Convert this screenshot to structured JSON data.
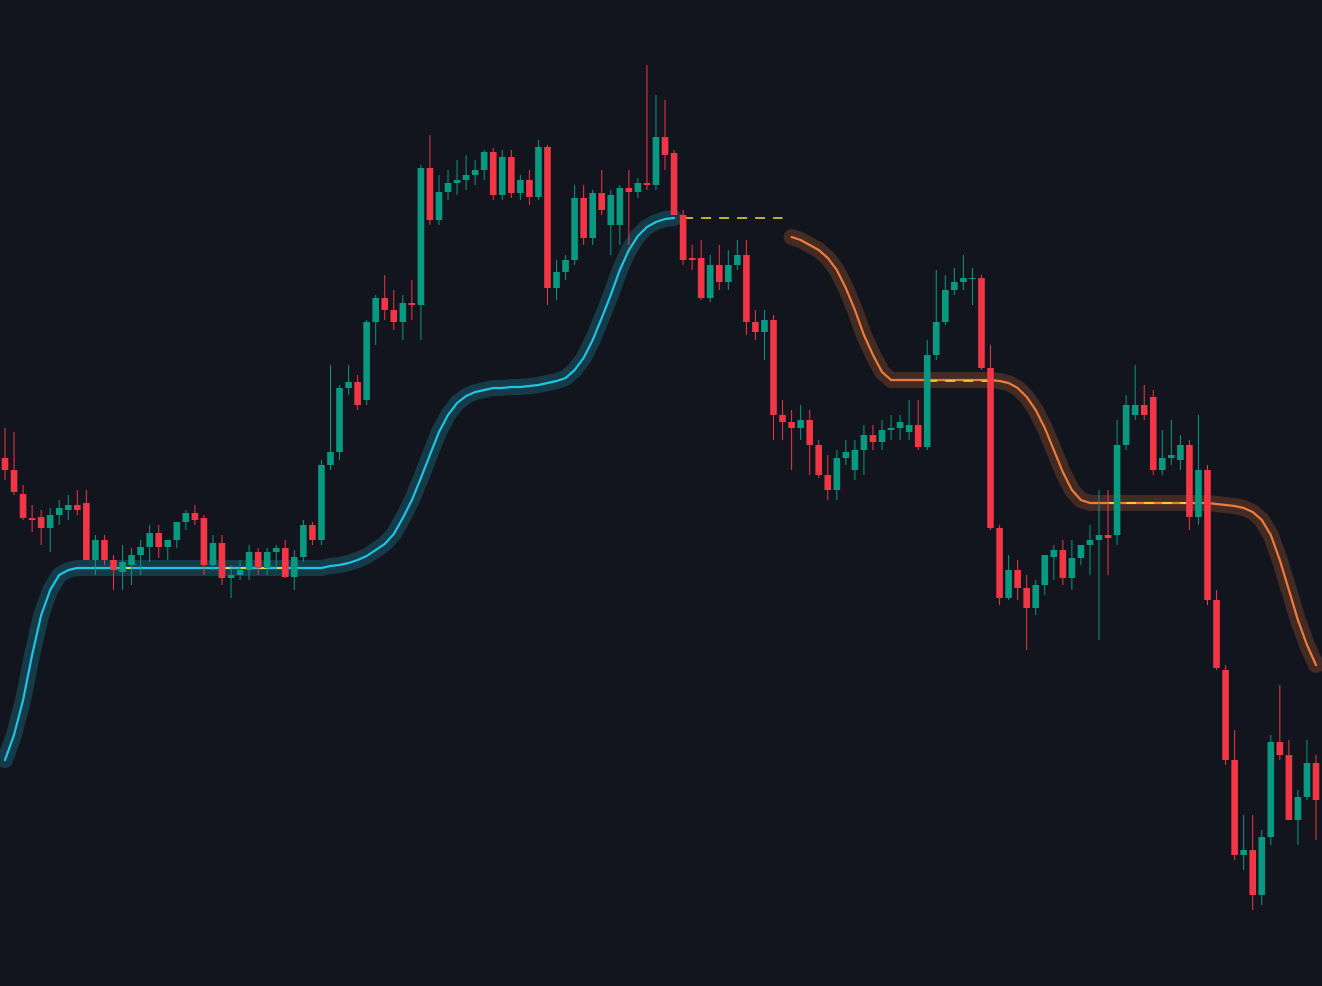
{
  "chart_data": {
    "type": "candlestick",
    "ylim": [
      14,
      1000
    ],
    "up_color": "#089981",
    "down_color": "#f23645",
    "open": [
      542,
      530,
      506,
      482,
      483,
      472,
      485,
      490,
      495,
      497,
      440,
      460,
      440,
      428,
      435,
      445,
      453,
      467,
      453,
      460,
      478,
      487,
      482,
      435,
      457,
      422,
      425,
      430,
      448,
      432,
      448,
      452,
      423,
      443,
      475,
      460,
      535,
      548,
      612,
      618,
      600,
      678,
      702,
      690,
      678,
      697,
      695,
      832,
      780,
      808,
      817,
      820,
      825,
      830,
      848,
      805,
      843,
      807,
      820,
      803,
      853,
      712,
      728,
      740,
      802,
      762,
      807,
      775,
      775,
      812,
      808,
      817,
      815,
      863,
      847,
      785,
      742,
      742,
      702,
      735,
      718,
      735,
      745,
      678,
      668,
      680,
      585,
      578,
      572,
      580,
      555,
      525,
      510,
      542,
      530,
      550,
      565,
      558,
      570,
      572,
      568,
      575,
      553,
      645,
      678,
      710,
      718,
      722,
      722,
      632,
      472,
      402,
      430,
      412,
      392,
      415,
      443,
      450,
      422,
      442,
      455,
      460,
      465,
      465,
      555,
      585,
      595,
      603,
      530,
      542,
      540,
      555,
      483,
      530,
      400,
      330,
      240,
      145,
      150,
      105,
      163,
      258,
      245,
      180,
      203,
      237
    ],
    "high": [
      572,
      568,
      515,
      495,
      490,
      492,
      500,
      505,
      510,
      510,
      465,
      465,
      445,
      455,
      452,
      460,
      475,
      475,
      460,
      475,
      490,
      495,
      485,
      465,
      465,
      435,
      440,
      455,
      452,
      452,
      455,
      460,
      450,
      480,
      478,
      540,
      635,
      615,
      635,
      625,
      680,
      705,
      725,
      710,
      705,
      720,
      835,
      865,
      825,
      830,
      840,
      845,
      840,
      850,
      852,
      850,
      850,
      825,
      830,
      860,
      855,
      740,
      745,
      815,
      815,
      810,
      830,
      810,
      815,
      830,
      822,
      935,
      905,
      900,
      850,
      790,
      755,
      760,
      745,
      755,
      750,
      760,
      760,
      690,
      690,
      685,
      600,
      590,
      595,
      590,
      560,
      545,
      550,
      560,
      560,
      575,
      575,
      580,
      585,
      585,
      600,
      600,
      660,
      730,
      725,
      732,
      745,
      732,
      725,
      655,
      475,
      445,
      440,
      425,
      420,
      445,
      455,
      460,
      460,
      455,
      475,
      510,
      510,
      580,
      605,
      635,
      615,
      610,
      570,
      580,
      565,
      560,
      585,
      535,
      410,
      335,
      270,
      185,
      185,
      170,
      265,
      315,
      260,
      210,
      260,
      245
    ],
    "low": [
      520,
      505,
      480,
      468,
      455,
      448,
      475,
      480,
      485,
      440,
      425,
      435,
      410,
      410,
      415,
      425,
      438,
      442,
      440,
      452,
      470,
      475,
      425,
      430,
      415,
      402,
      420,
      420,
      425,
      425,
      430,
      422,
      410,
      438,
      455,
      455,
      530,
      540,
      605,
      590,
      595,
      655,
      680,
      670,
      660,
      680,
      660,
      775,
      775,
      800,
      805,
      810,
      815,
      820,
      800,
      800,
      802,
      800,
      795,
      800,
      695,
      700,
      720,
      735,
      755,
      755,
      785,
      745,
      755,
      755,
      802,
      810,
      810,
      830,
      785,
      735,
      730,
      700,
      698,
      710,
      710,
      730,
      665,
      660,
      640,
      560,
      560,
      530,
      560,
      525,
      522,
      500,
      500,
      535,
      520,
      525,
      550,
      550,
      560,
      560,
      560,
      550,
      550,
      640,
      675,
      705,
      710,
      695,
      630,
      470,
      395,
      400,
      400,
      350,
      385,
      405,
      420,
      415,
      410,
      435,
      425,
      360,
      425,
      455,
      550,
      580,
      580,
      525,
      525,
      535,
      530,
      470,
      475,
      395,
      330,
      235,
      140,
      130,
      90,
      95,
      155,
      240,
      180,
      155,
      200,
      160
    ],
    "close": [
      530,
      508,
      482,
      480,
      472,
      485,
      492,
      495,
      490,
      440,
      460,
      440,
      430,
      438,
      445,
      453,
      467,
      453,
      460,
      478,
      487,
      480,
      435,
      457,
      422,
      425,
      430,
      448,
      432,
      448,
      452,
      423,
      443,
      475,
      460,
      535,
      548,
      612,
      618,
      595,
      678,
      702,
      690,
      678,
      697,
      695,
      832,
      780,
      808,
      817,
      820,
      825,
      830,
      848,
      805,
      843,
      807,
      820,
      803,
      853,
      712,
      728,
      740,
      802,
      762,
      807,
      790,
      805,
      812,
      808,
      817,
      815,
      863,
      845,
      785,
      740,
      740,
      702,
      735,
      718,
      735,
      745,
      678,
      668,
      680,
      585,
      578,
      572,
      580,
      555,
      525,
      510,
      542,
      548,
      550,
      565,
      558,
      570,
      572,
      578,
      575,
      553,
      645,
      678,
      710,
      718,
      722,
      722,
      632,
      472,
      402,
      430,
      412,
      392,
      415,
      445,
      450,
      422,
      442,
      455,
      460,
      465,
      462,
      555,
      595,
      595,
      585,
      530,
      542,
      545,
      555,
      483,
      530,
      400,
      332,
      240,
      145,
      150,
      105,
      163,
      258,
      245,
      180,
      203,
      237,
      200
    ],
    "series": [
      {
        "color": "#1fc3e3",
        "values": [
          240,
          265,
          300,
          345,
          385,
          410,
          425,
          430,
          432,
          432,
          432,
          432,
          432,
          432,
          432,
          432,
          432,
          432,
          432,
          432,
          432,
          432,
          432,
          432,
          432,
          432,
          432,
          432,
          432,
          432,
          432,
          432,
          432,
          432,
          432,
          432,
          434,
          435,
          437,
          440,
          444,
          450,
          456,
          466,
          482,
          500,
          522,
          545,
          568,
          585,
          597,
          604,
          608,
          610,
          612,
          612,
          613,
          613,
          614,
          615,
          617,
          619,
          622,
          630,
          642,
          660,
          682,
          705,
          730,
          750,
          764,
          773,
          778,
          781,
          782,
          null,
          null,
          null,
          null,
          null,
          null,
          null,
          null,
          null,
          null,
          null,
          null,
          null,
          null,
          null,
          null,
          null,
          null,
          null,
          null,
          null,
          null,
          null,
          null,
          null,
          null,
          null,
          null,
          null,
          null,
          null,
          null,
          null,
          null,
          null,
          null,
          null,
          null,
          null,
          null,
          null,
          null,
          null,
          null,
          null,
          null,
          null,
          null,
          null,
          null,
          null,
          null,
          null,
          null,
          null,
          null,
          null,
          null,
          null,
          null,
          null,
          null,
          null,
          null,
          null,
          null,
          null,
          null,
          null,
          null,
          null
        ]
      },
      {
        "color": "#f07a3a",
        "values": [
          null,
          null,
          null,
          null,
          null,
          null,
          null,
          null,
          null,
          null,
          null,
          null,
          null,
          null,
          null,
          null,
          null,
          null,
          null,
          null,
          null,
          null,
          null,
          null,
          null,
          null,
          null,
          null,
          null,
          null,
          null,
          null,
          null,
          null,
          null,
          null,
          null,
          null,
          null,
          null,
          null,
          null,
          null,
          null,
          null,
          null,
          null,
          null,
          null,
          null,
          null,
          null,
          null,
          null,
          null,
          null,
          null,
          null,
          null,
          null,
          null,
          null,
          null,
          null,
          null,
          null,
          null,
          null,
          null,
          null,
          null,
          null,
          null,
          null,
          null,
          null,
          null,
          null,
          null,
          null,
          null,
          null,
          null,
          null,
          null,
          null,
          null,
          763,
          760,
          755,
          750,
          742,
          730,
          712,
          690,
          665,
          645,
          628,
          620,
          620,
          620,
          620,
          620,
          620,
          620,
          620,
          620,
          620,
          620,
          620,
          619,
          617,
          612,
          603,
          590,
          572,
          550,
          528,
          510,
          500,
          497,
          497,
          497,
          497,
          497,
          497,
          497,
          497,
          497,
          497,
          497,
          497,
          497,
          497,
          496,
          495,
          494,
          492,
          488,
          480,
          465,
          440,
          410,
          380,
          355,
          335
        ]
      }
    ],
    "level_color": "#f5e13a",
    "levels": [
      {
        "value": 432,
        "start": 13,
        "end": 14
      },
      {
        "value": 432,
        "start": 24,
        "end": 32
      },
      {
        "value": 782,
        "start": 75,
        "end": 86
      },
      {
        "value": 619,
        "start": 102,
        "end": 109
      },
      {
        "value": 497,
        "start": 122,
        "end": 132
      }
    ]
  }
}
